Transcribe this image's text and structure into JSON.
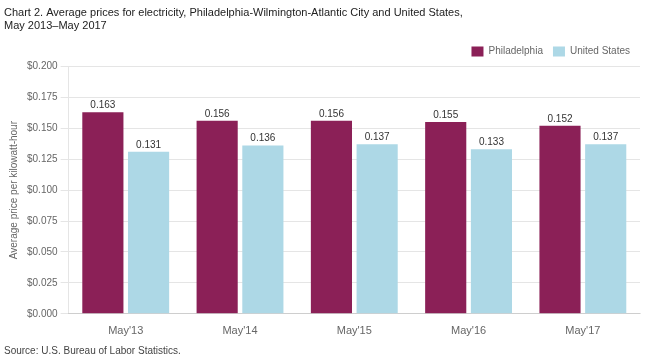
{
  "chart_data": {
    "type": "bar",
    "title": [
      "Chart 2. Average prices for electricity, Philadelphia-Wilmington-Atlantic City and United States,",
      "May 2013–May 2017"
    ],
    "ylabel": "Average price per kilowatt-hour",
    "annotations": [
      "Source: U.S. Bureau of Labor Statistics."
    ],
    "categories": [
      "May'13",
      "May'14",
      "May'15",
      "May'16",
      "May'17"
    ],
    "series": [
      {
        "name": "Philadelphia",
        "color": "#8B2057",
        "values": [
          0.163,
          0.156,
          0.156,
          0.155,
          0.152
        ]
      },
      {
        "name": "United States",
        "color": "#ADD8E6",
        "values": [
          0.131,
          0.136,
          0.137,
          0.133,
          0.137
        ]
      }
    ],
    "ylim": [
      0.0,
      0.2
    ],
    "yticks": [
      {
        "value": 0.0,
        "label": "$0.000"
      },
      {
        "value": 0.025,
        "label": "$0.025"
      },
      {
        "value": 0.05,
        "label": "$0.050"
      },
      {
        "value": 0.075,
        "label": "$0.075"
      },
      {
        "value": 0.1,
        "label": "$0.100"
      },
      {
        "value": 0.125,
        "label": "$0.125"
      },
      {
        "value": 0.15,
        "label": "$0.150"
      },
      {
        "value": 0.175,
        "label": "$0.175"
      },
      {
        "value": 0.2,
        "label": "$0.200"
      }
    ],
    "grid": true,
    "legend": "upper right",
    "data_labels": true
  }
}
